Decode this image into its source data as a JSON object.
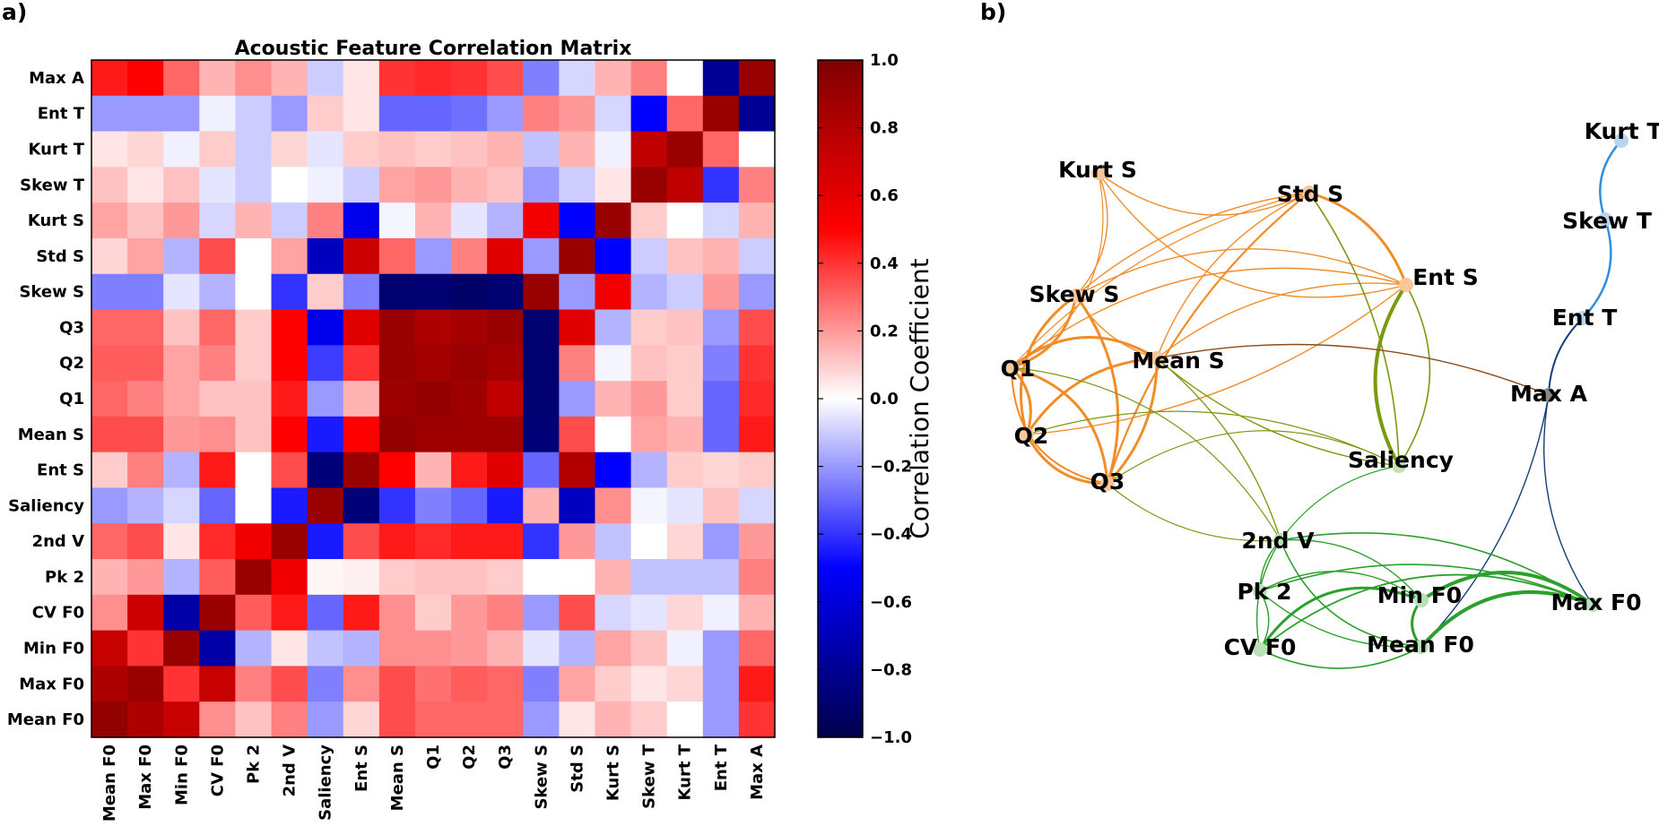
{
  "panel_a_label": "a)",
  "panel_b_label": "b)",
  "chart_data": [
    {
      "type": "heatmap",
      "title": "Acoustic Feature Correlation Matrix",
      "xlabels": [
        "Mean F0",
        "Max F0",
        "Min F0",
        "CV F0",
        "Pk 2",
        "2nd V",
        "Saliency",
        "Ent S",
        "Mean S",
        "Q1",
        "Q2",
        "Q3",
        "Skew S",
        "Std S",
        "Kurt S",
        "Skew T",
        "Kurt T",
        "Ent T",
        "Max A"
      ],
      "ylabels_top_to_bottom": [
        "Max A",
        "Ent T",
        "Kurt T",
        "Skew T",
        "Kurt S",
        "Std S",
        "Skew S",
        "Q3",
        "Q2",
        "Q1",
        "Mean S",
        "Ent S",
        "Saliency",
        "2nd V",
        "Pk 2",
        "CV F0",
        "Min F0",
        "Max F0",
        "Mean F0"
      ],
      "matrix_rows_top_to_bottom": [
        [
          0.45,
          0.5,
          0.3,
          0.15,
          0.22,
          0.15,
          -0.1,
          0.05,
          0.4,
          0.42,
          0.4,
          0.35,
          -0.25,
          -0.08,
          0.15,
          0.25,
          0.0,
          -0.8,
          0.9
        ],
        [
          -0.2,
          -0.2,
          -0.2,
          -0.03,
          -0.1,
          -0.2,
          0.1,
          0.05,
          -0.3,
          -0.3,
          -0.28,
          -0.2,
          0.25,
          0.2,
          -0.08,
          -0.5,
          0.3,
          0.9,
          -0.8
        ],
        [
          0.05,
          0.08,
          -0.03,
          0.1,
          -0.1,
          0.08,
          -0.05,
          0.1,
          0.12,
          0.1,
          0.12,
          0.15,
          -0.12,
          0.15,
          -0.03,
          0.75,
          0.9,
          0.3,
          0.0
        ],
        [
          0.12,
          0.05,
          0.12,
          -0.05,
          -0.1,
          0.0,
          -0.03,
          -0.1,
          0.18,
          0.2,
          0.15,
          0.12,
          -0.2,
          -0.1,
          0.05,
          0.9,
          0.75,
          -0.4,
          0.25
        ],
        [
          0.18,
          0.12,
          0.2,
          -0.08,
          0.15,
          -0.1,
          0.25,
          -0.55,
          -0.02,
          0.15,
          -0.05,
          -0.15,
          0.55,
          -0.5,
          0.9,
          0.1,
          0.0,
          -0.08,
          0.15
        ],
        [
          0.08,
          0.18,
          -0.15,
          0.35,
          0.0,
          0.18,
          -0.68,
          0.7,
          0.3,
          -0.2,
          0.25,
          0.62,
          -0.2,
          0.9,
          -0.5,
          -0.1,
          0.12,
          0.15,
          -0.1
        ],
        [
          -0.25,
          -0.25,
          -0.05,
          -0.15,
          0.0,
          -0.4,
          0.1,
          -0.25,
          -0.9,
          -0.9,
          -0.92,
          -0.9,
          0.9,
          -0.2,
          0.55,
          -0.15,
          -0.1,
          0.2,
          -0.2
        ],
        [
          0.3,
          0.3,
          0.12,
          0.3,
          0.1,
          0.5,
          -0.55,
          0.62,
          0.9,
          0.82,
          0.85,
          0.9,
          -0.9,
          0.62,
          -0.15,
          0.1,
          0.12,
          -0.2,
          0.35
        ],
        [
          0.32,
          0.32,
          0.18,
          0.25,
          0.1,
          0.5,
          -0.38,
          0.4,
          0.9,
          0.85,
          0.9,
          0.85,
          -0.9,
          0.25,
          -0.02,
          0.12,
          0.1,
          -0.25,
          0.4
        ],
        [
          0.3,
          0.25,
          0.18,
          0.12,
          0.12,
          0.45,
          -0.2,
          0.15,
          0.88,
          0.92,
          0.88,
          0.75,
          -0.9,
          -0.2,
          0.15,
          0.2,
          0.1,
          -0.3,
          0.42
        ],
        [
          0.35,
          0.35,
          0.2,
          0.22,
          0.12,
          0.5,
          -0.45,
          0.5,
          0.92,
          0.88,
          0.88,
          0.88,
          -0.88,
          0.35,
          0.0,
          0.18,
          0.15,
          -0.3,
          0.45
        ],
        [
          0.1,
          0.25,
          -0.15,
          0.45,
          0.0,
          0.35,
          -0.88,
          0.9,
          0.5,
          0.15,
          0.45,
          0.62,
          -0.3,
          0.8,
          -0.5,
          -0.15,
          0.1,
          0.08,
          0.1
        ],
        [
          -0.2,
          -0.15,
          -0.08,
          -0.3,
          0.0,
          -0.45,
          0.9,
          -0.88,
          -0.4,
          -0.25,
          -0.3,
          -0.45,
          0.15,
          -0.68,
          0.22,
          -0.02,
          -0.05,
          0.12,
          -0.08
        ],
        [
          0.3,
          0.35,
          0.05,
          0.42,
          0.55,
          0.9,
          -0.45,
          0.35,
          0.45,
          0.42,
          0.45,
          0.45,
          -0.4,
          0.2,
          -0.12,
          0.0,
          0.08,
          -0.2,
          0.2
        ],
        [
          0.15,
          0.2,
          -0.15,
          0.32,
          0.9,
          0.55,
          0.02,
          0.03,
          0.1,
          0.12,
          0.12,
          0.1,
          0.0,
          0.0,
          0.15,
          -0.12,
          -0.12,
          -0.12,
          0.25
        ],
        [
          0.22,
          0.7,
          -0.75,
          0.9,
          0.32,
          0.45,
          -0.3,
          0.45,
          0.22,
          0.1,
          0.2,
          0.25,
          -0.2,
          0.35,
          -0.08,
          -0.05,
          0.08,
          -0.03,
          0.15
        ],
        [
          0.72,
          0.4,
          0.9,
          -0.75,
          -0.15,
          0.05,
          -0.12,
          -0.15,
          0.22,
          0.22,
          0.2,
          0.15,
          -0.05,
          -0.15,
          0.18,
          0.12,
          -0.03,
          -0.2,
          0.3
        ],
        [
          0.82,
          0.9,
          0.4,
          0.72,
          0.25,
          0.35,
          -0.25,
          0.22,
          0.35,
          0.28,
          0.32,
          0.3,
          -0.25,
          0.18,
          0.1,
          0.05,
          0.08,
          -0.2,
          0.45
        ],
        [
          0.92,
          0.82,
          0.72,
          0.22,
          0.12,
          0.25,
          -0.2,
          0.08,
          0.35,
          0.3,
          0.3,
          0.3,
          -0.2,
          0.05,
          0.15,
          0.1,
          0.0,
          -0.2,
          0.4
        ]
      ],
      "colorbar": {
        "label": "Correlation Coefficient",
        "range": [
          -1.0,
          1.0
        ],
        "ticks": [
          "1.0",
          "0.8",
          "0.6",
          "0.4",
          "0.2",
          "0.0",
          "−0.2",
          "−0.4",
          "−0.6",
          "−0.8",
          "−1.0"
        ],
        "colormap": "seismic"
      }
    },
    {
      "type": "network",
      "nodes": [
        "Kurt T",
        "Skew T",
        "Ent T",
        "Max A",
        "Kurt S",
        "Std S",
        "Ent S",
        "Skew S",
        "Q1",
        "Mean S",
        "Q2",
        "Q3",
        "Saliency",
        "2nd V",
        "Pk 2",
        "Min F0",
        "Max F0",
        "CV F0",
        "Mean F0"
      ],
      "node_colors": {
        "orange": "#f28c28",
        "green": "#2ca02c",
        "olive": "#7a9a10",
        "blue": "#2f8fe0",
        "darkblue": "#153e7a",
        "brown": "#8b4a1a"
      }
    }
  ]
}
